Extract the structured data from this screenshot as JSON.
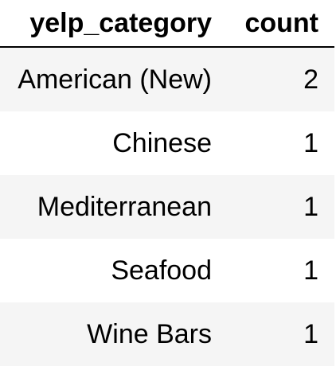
{
  "table": {
    "columns": [
      "yelp_category",
      "count"
    ],
    "rows": [
      [
        "American (New)",
        "2"
      ],
      [
        "Chinese",
        "1"
      ],
      [
        "Mediterranean",
        "1"
      ],
      [
        "Seafood",
        "1"
      ],
      [
        "Wine Bars",
        "1"
      ]
    ]
  },
  "colors": {
    "row_stripe": "#f5f5f5",
    "background": "#ffffff",
    "header_rule": "#000000"
  }
}
